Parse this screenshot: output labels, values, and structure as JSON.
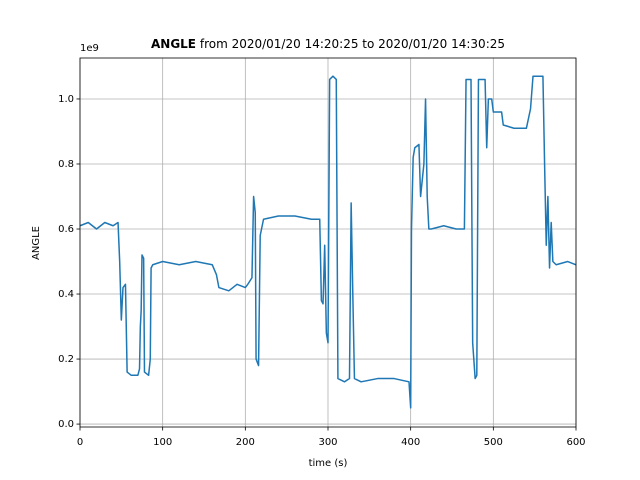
{
  "chart_data": {
    "type": "line",
    "title_bold": "ANGLE",
    "title": "from 2020/01/20 14:20:25 to 2020/01/20 14:30:25",
    "offset_label": "1e9",
    "xlabel": "time (s)",
    "ylabel": "ANGLE",
    "x": [
      0,
      10,
      20,
      30,
      40,
      46,
      48,
      50,
      52,
      55,
      57,
      62,
      70,
      72,
      73,
      74,
      75,
      77,
      78,
      83,
      85,
      86,
      88,
      100,
      120,
      140,
      160,
      165,
      168,
      180,
      190,
      200,
      203,
      208,
      210,
      212,
      213,
      216,
      218,
      222,
      240,
      260,
      280,
      290,
      292,
      294,
      296,
      298,
      300,
      302,
      306,
      310,
      312,
      320,
      326,
      328,
      330,
      332,
      340,
      360,
      380,
      398,
      400,
      401,
      403,
      405,
      410,
      412,
      416,
      418,
      420,
      422,
      425,
      440,
      455,
      465,
      467,
      473,
      475,
      478,
      480,
      482,
      490,
      492,
      494,
      498,
      500,
      510,
      512,
      525,
      540,
      545,
      548,
      560,
      562,
      564,
      566,
      568,
      570,
      572,
      576,
      590,
      600
    ],
    "series": [
      {
        "name": "ANGLE",
        "color": "#1f77b4",
        "values": [
          0.61,
          0.62,
          0.6,
          0.62,
          0.61,
          0.62,
          0.5,
          0.32,
          0.42,
          0.43,
          0.16,
          0.15,
          0.15,
          0.17,
          0.3,
          0.35,
          0.52,
          0.51,
          0.16,
          0.15,
          0.2,
          0.48,
          0.49,
          0.5,
          0.49,
          0.5,
          0.49,
          0.46,
          0.42,
          0.41,
          0.43,
          0.42,
          0.43,
          0.45,
          0.7,
          0.65,
          0.2,
          0.18,
          0.58,
          0.63,
          0.64,
          0.64,
          0.63,
          0.63,
          0.38,
          0.37,
          0.55,
          0.28,
          0.25,
          1.06,
          1.07,
          1.06,
          0.14,
          0.13,
          0.14,
          0.68,
          0.4,
          0.14,
          0.13,
          0.14,
          0.14,
          0.13,
          0.05,
          0.6,
          0.82,
          0.85,
          0.86,
          0.7,
          0.8,
          1.0,
          0.7,
          0.6,
          0.6,
          0.61,
          0.6,
          0.6,
          1.06,
          1.06,
          0.25,
          0.14,
          0.15,
          1.06,
          1.06,
          0.85,
          1.0,
          1.0,
          0.96,
          0.96,
          0.92,
          0.91,
          0.91,
          0.97,
          1.07,
          1.07,
          0.8,
          0.55,
          0.7,
          0.48,
          0.62,
          0.5,
          0.49,
          0.5,
          0.49
        ]
      }
    ],
    "xlim": [
      0,
      600
    ],
    "ylim": [
      -0.009,
      1.126
    ],
    "xticks": [
      0,
      100,
      200,
      300,
      400,
      500,
      600
    ],
    "yticks": [
      {
        "value": 0,
        "label": "0.0"
      },
      {
        "value": 0.2,
        "label": "0.2"
      },
      {
        "value": 0.4,
        "label": "0.4"
      },
      {
        "value": 0.6,
        "label": "0.6"
      },
      {
        "value": 0.8,
        "label": "0.8"
      },
      {
        "value": 1.0,
        "label": "1.0"
      }
    ],
    "grid": true
  }
}
